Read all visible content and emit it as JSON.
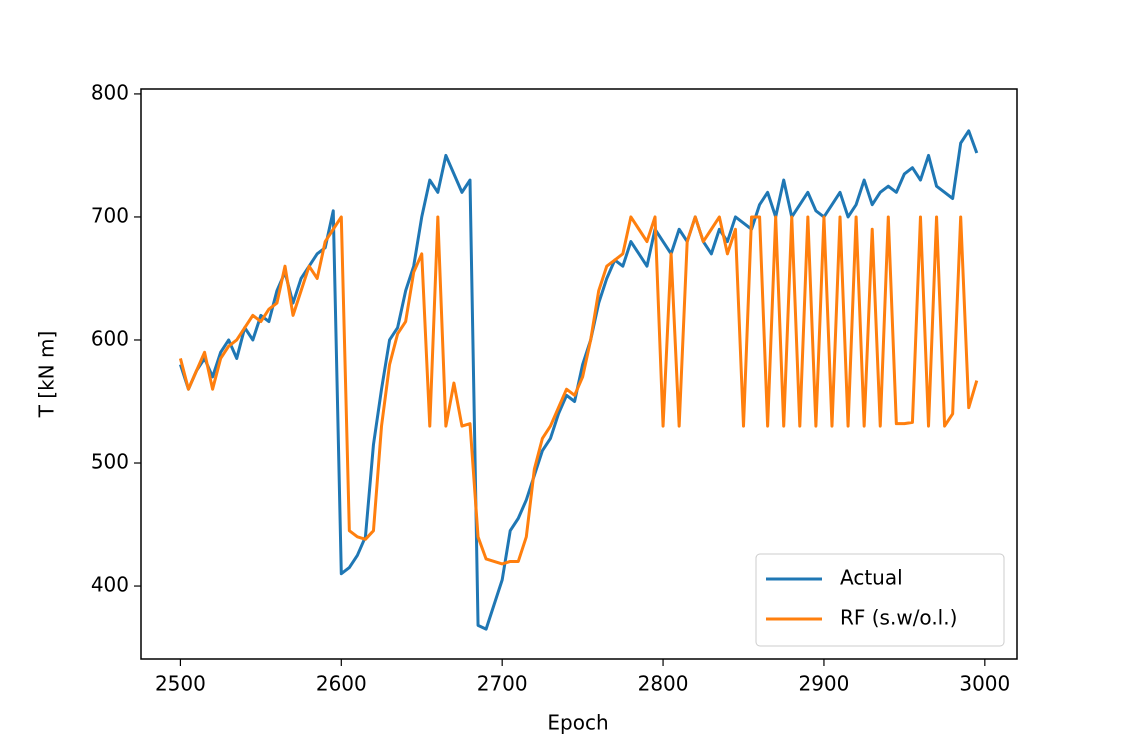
{
  "chart_data": {
    "type": "line",
    "x_label": "Epoch",
    "y_label": "T [kN m]",
    "x": [
      2500,
      2505,
      2510,
      2515,
      2520,
      2525,
      2530,
      2535,
      2540,
      2545,
      2550,
      2555,
      2560,
      2565,
      2570,
      2575,
      2580,
      2585,
      2590,
      2595,
      2600,
      2605,
      2610,
      2615,
      2620,
      2625,
      2630,
      2635,
      2640,
      2645,
      2650,
      2655,
      2660,
      2665,
      2670,
      2675,
      2680,
      2685,
      2690,
      2695,
      2700,
      2705,
      2710,
      2715,
      2720,
      2725,
      2730,
      2735,
      2740,
      2745,
      2750,
      2755,
      2760,
      2765,
      2770,
      2775,
      2780,
      2785,
      2790,
      2795,
      2800,
      2805,
      2810,
      2815,
      2820,
      2825,
      2830,
      2835,
      2840,
      2845,
      2850,
      2855,
      2860,
      2865,
      2870,
      2875,
      2880,
      2885,
      2890,
      2895,
      2900,
      2905,
      2910,
      2915,
      2920,
      2925,
      2930,
      2935,
      2940,
      2945,
      2950,
      2955,
      2960,
      2965,
      2970,
      2975,
      2980,
      2985,
      2990,
      2995
    ],
    "series": [
      {
        "name": "Actual",
        "color": "#1f77b4",
        "values": [
          580,
          560,
          575,
          585,
          570,
          590,
          600,
          585,
          610,
          600,
          620,
          615,
          640,
          655,
          630,
          650,
          660,
          670,
          675,
          705,
          410,
          415,
          425,
          440,
          515,
          560,
          600,
          610,
          640,
          660,
          700,
          730,
          720,
          750,
          735,
          720,
          730,
          368,
          365,
          385,
          405,
          445,
          455,
          470,
          490,
          510,
          520,
          540,
          555,
          550,
          580,
          600,
          630,
          650,
          665,
          660,
          680,
          670,
          660,
          690,
          680,
          670,
          690,
          680,
          700,
          680,
          670,
          690,
          680,
          700,
          695,
          690,
          710,
          720,
          700,
          730,
          700,
          710,
          720,
          705,
          700,
          710,
          720,
          700,
          710,
          730,
          710,
          720,
          725,
          720,
          735,
          740,
          730,
          750,
          725,
          720,
          715,
          760,
          770,
          752
        ]
      },
      {
        "name": "RF (s.w/o.l.)",
        "color": "#ff7f0e",
        "values": [
          585,
          560,
          575,
          590,
          560,
          585,
          595,
          600,
          610,
          620,
          615,
          625,
          630,
          660,
          620,
          640,
          660,
          650,
          680,
          690,
          700,
          445,
          440,
          438,
          445,
          530,
          580,
          605,
          615,
          655,
          670,
          530,
          700,
          530,
          565,
          530,
          532,
          440,
          422,
          420,
          418,
          420,
          420,
          440,
          495,
          520,
          530,
          545,
          560,
          555,
          570,
          600,
          640,
          660,
          665,
          670,
          700,
          690,
          680,
          700,
          530,
          670,
          530,
          680,
          700,
          680,
          690,
          700,
          670,
          690,
          530,
          700,
          700,
          530,
          700,
          530,
          700,
          530,
          700,
          530,
          700,
          530,
          700,
          530,
          700,
          530,
          690,
          530,
          700,
          532,
          532,
          533,
          700,
          530,
          700,
          530,
          540,
          700,
          545,
          567
        ]
      }
    ],
    "xlim": [
      2475.5,
      3020
    ],
    "ylim": [
      340.7,
      804
    ],
    "xticks": [
      2500,
      2600,
      2700,
      2800,
      2900,
      3000
    ],
    "yticks": [
      400,
      500,
      600,
      700,
      800
    ],
    "legend": "lower right"
  }
}
